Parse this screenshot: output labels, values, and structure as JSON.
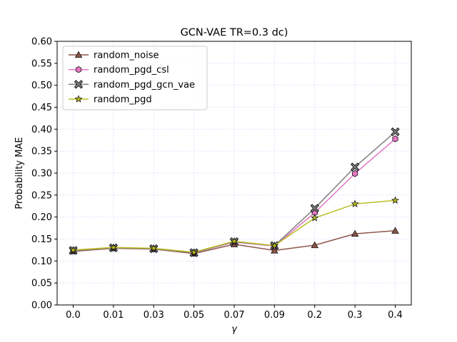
{
  "chart_data": {
    "type": "line",
    "title": "GCN-VAE TR=0.3 dc)",
    "xlabel": "γ",
    "ylabel": "Probability MAE",
    "categories": [
      "0.0",
      "0.01",
      "0.03",
      "0.05",
      "0.07",
      "0.09",
      "0.2",
      "0.3",
      "0.4"
    ],
    "ylim": [
      0.0,
      0.6
    ],
    "yticks": [
      "0.00",
      "0.05",
      "0.10",
      "0.15",
      "0.20",
      "0.25",
      "0.30",
      "0.35",
      "0.40",
      "0.45",
      "0.50",
      "0.55",
      "0.60"
    ],
    "grid": true,
    "legend_position": "upper-left",
    "series": [
      {
        "name": "random_noise",
        "color": "#8c564b",
        "marker": "triangle",
        "values": [
          0.122,
          0.129,
          0.127,
          0.117,
          0.138,
          0.124,
          0.136,
          0.162,
          0.169
        ]
      },
      {
        "name": "random_pgd_csl",
        "color": "#e377c2",
        "marker": "hexagon",
        "values": [
          0.124,
          0.13,
          0.128,
          0.119,
          0.143,
          0.134,
          0.21,
          0.299,
          0.378
        ]
      },
      {
        "name": "random_pgd_gcn_vae",
        "color": "#7f7f7f",
        "marker": "x",
        "values": [
          0.124,
          0.13,
          0.128,
          0.119,
          0.144,
          0.135,
          0.22,
          0.314,
          0.394
        ]
      },
      {
        "name": "random_pgd",
        "color": "#bcbd22",
        "marker": "star",
        "values": [
          0.125,
          0.131,
          0.129,
          0.12,
          0.145,
          0.135,
          0.198,
          0.23,
          0.238
        ]
      }
    ]
  }
}
